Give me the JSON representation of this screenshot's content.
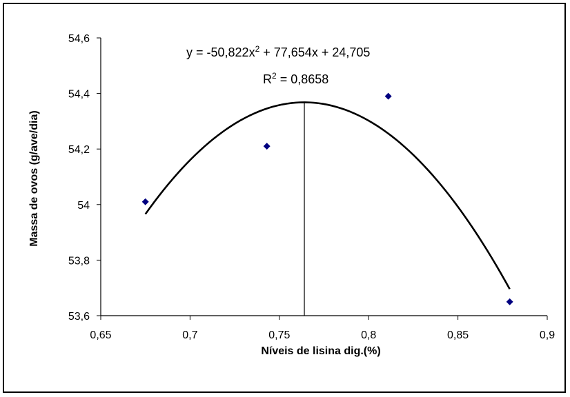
{
  "chart_data": {
    "type": "scatter",
    "title": "",
    "xlabel": "Níveis de lisina dig.(%)",
    "ylabel": "Massa de ovos (g/ave/dia)",
    "xlim": [
      0.65,
      0.9
    ],
    "ylim": [
      53.6,
      54.6
    ],
    "x_ticks": [
      "0,65",
      "0,7",
      "0,75",
      "0,8",
      "0,85",
      "0,9"
    ],
    "x_tick_values": [
      0.65,
      0.7,
      0.75,
      0.8,
      0.85,
      0.9
    ],
    "y_ticks": [
      "53,6",
      "53,8",
      "54",
      "54,2",
      "54,4",
      "54,6"
    ],
    "y_tick_values": [
      53.6,
      53.8,
      54.0,
      54.2,
      54.4,
      54.6
    ],
    "points": [
      {
        "x": 0.675,
        "y": 54.01
      },
      {
        "x": 0.743,
        "y": 54.21
      },
      {
        "x": 0.811,
        "y": 54.39
      },
      {
        "x": 0.879,
        "y": 53.65
      }
    ],
    "trendline": {
      "type": "polynomial",
      "a": -50.822,
      "b": 77.654,
      "c": 24.705,
      "x_range": [
        0.675,
        0.879
      ]
    },
    "vertical_line_x": 0.764,
    "equation_prefix": "y = -50,822x",
    "equation_suffix": " + 77,654x + 24,705",
    "r2_prefix": "R",
    "r2_suffix": " = 0,8658",
    "grid": false,
    "legend": "none",
    "marker_color": "#000080"
  }
}
